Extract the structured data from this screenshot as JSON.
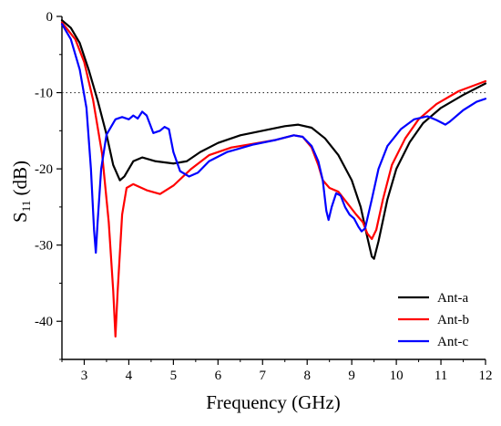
{
  "chart_data": {
    "type": "line",
    "title": "",
    "xlabel": "Frequency (GHz)",
    "ylabel_main": "S",
    "ylabel_sub": "11",
    "ylabel_unit": " (dB)",
    "xlim": [
      2.5,
      12
    ],
    "ylim": [
      -45,
      0
    ],
    "xticks": [
      3,
      4,
      5,
      6,
      7,
      8,
      9,
      10,
      11,
      12
    ],
    "yticks": [
      0,
      -10,
      -20,
      -30,
      -40
    ],
    "reference_line": {
      "y": -10,
      "style": "dotted",
      "color": "#333333"
    },
    "legend_position": "bottom-right",
    "grid": false,
    "series": [
      {
        "name": "Ant-a",
        "color": "#000000",
        "points": [
          [
            2.5,
            -0.5
          ],
          [
            2.7,
            -1.5
          ],
          [
            2.9,
            -3.5
          ],
          [
            3.1,
            -7
          ],
          [
            3.3,
            -11
          ],
          [
            3.5,
            -15.5
          ],
          [
            3.65,
            -19.5
          ],
          [
            3.8,
            -21.5
          ],
          [
            3.9,
            -21
          ],
          [
            4.1,
            -19
          ],
          [
            4.3,
            -18.5
          ],
          [
            4.6,
            -19
          ],
          [
            5.0,
            -19.3
          ],
          [
            5.3,
            -19
          ],
          [
            5.6,
            -17.8
          ],
          [
            6.0,
            -16.6
          ],
          [
            6.5,
            -15.6
          ],
          [
            7.0,
            -15
          ],
          [
            7.5,
            -14.4
          ],
          [
            7.8,
            -14.2
          ],
          [
            8.1,
            -14.6
          ],
          [
            8.4,
            -16
          ],
          [
            8.7,
            -18.2
          ],
          [
            9.0,
            -21.5
          ],
          [
            9.2,
            -25
          ],
          [
            9.35,
            -29
          ],
          [
            9.45,
            -31.5
          ],
          [
            9.5,
            -31.8
          ],
          [
            9.6,
            -29.5
          ],
          [
            9.8,
            -24
          ],
          [
            10.0,
            -20
          ],
          [
            10.3,
            -16.5
          ],
          [
            10.6,
            -14
          ],
          [
            11.0,
            -12
          ],
          [
            11.5,
            -10.3
          ],
          [
            12.0,
            -8.8
          ]
        ]
      },
      {
        "name": "Ant-b",
        "color": "#ff0000",
        "points": [
          [
            2.5,
            -0.8
          ],
          [
            2.8,
            -3
          ],
          [
            3.0,
            -6
          ],
          [
            3.2,
            -11
          ],
          [
            3.4,
            -18
          ],
          [
            3.55,
            -27
          ],
          [
            3.65,
            -36
          ],
          [
            3.7,
            -42
          ],
          [
            3.75,
            -36
          ],
          [
            3.85,
            -26
          ],
          [
            3.95,
            -22.5
          ],
          [
            4.1,
            -22
          ],
          [
            4.4,
            -22.8
          ],
          [
            4.7,
            -23.3
          ],
          [
            5.0,
            -22.2
          ],
          [
            5.4,
            -20
          ],
          [
            5.8,
            -18.2
          ],
          [
            6.3,
            -17.2
          ],
          [
            6.8,
            -16.7
          ],
          [
            7.3,
            -16.2
          ],
          [
            7.7,
            -15.6
          ],
          [
            7.9,
            -15.8
          ],
          [
            8.1,
            -17.2
          ],
          [
            8.25,
            -19.5
          ],
          [
            8.35,
            -21.5
          ],
          [
            8.5,
            -22.5
          ],
          [
            8.7,
            -23
          ],
          [
            8.9,
            -24.5
          ],
          [
            9.1,
            -26
          ],
          [
            9.25,
            -27
          ],
          [
            9.35,
            -28.5
          ],
          [
            9.45,
            -29.2
          ],
          [
            9.55,
            -28
          ],
          [
            9.7,
            -24
          ],
          [
            9.9,
            -19.5
          ],
          [
            10.2,
            -16
          ],
          [
            10.5,
            -13.5
          ],
          [
            10.9,
            -11.5
          ],
          [
            11.4,
            -9.8
          ],
          [
            12.0,
            -8.5
          ]
        ]
      },
      {
        "name": "Ant-c",
        "color": "#0000ff",
        "points": [
          [
            2.5,
            -1
          ],
          [
            2.7,
            -3
          ],
          [
            2.9,
            -7
          ],
          [
            3.05,
            -12
          ],
          [
            3.15,
            -20
          ],
          [
            3.22,
            -28
          ],
          [
            3.26,
            -31
          ],
          [
            3.3,
            -27
          ],
          [
            3.38,
            -20
          ],
          [
            3.5,
            -15.5
          ],
          [
            3.7,
            -13.5
          ],
          [
            3.85,
            -13.2
          ],
          [
            4.0,
            -13.5
          ],
          [
            4.1,
            -13
          ],
          [
            4.2,
            -13.4
          ],
          [
            4.3,
            -12.5
          ],
          [
            4.4,
            -13
          ],
          [
            4.55,
            -15.3
          ],
          [
            4.7,
            -15
          ],
          [
            4.8,
            -14.5
          ],
          [
            4.9,
            -14.8
          ],
          [
            5.0,
            -17.8
          ],
          [
            5.15,
            -20.3
          ],
          [
            5.35,
            -21
          ],
          [
            5.55,
            -20.5
          ],
          [
            5.8,
            -19
          ],
          [
            6.2,
            -17.8
          ],
          [
            6.8,
            -16.8
          ],
          [
            7.3,
            -16.2
          ],
          [
            7.7,
            -15.6
          ],
          [
            7.9,
            -15.8
          ],
          [
            8.1,
            -17
          ],
          [
            8.25,
            -19
          ],
          [
            8.35,
            -21.5
          ],
          [
            8.43,
            -25.5
          ],
          [
            8.48,
            -26.7
          ],
          [
            8.55,
            -25
          ],
          [
            8.65,
            -23.2
          ],
          [
            8.75,
            -23.5
          ],
          [
            8.85,
            -25
          ],
          [
            8.95,
            -26
          ],
          [
            9.05,
            -26.5
          ],
          [
            9.15,
            -27.6
          ],
          [
            9.22,
            -28.2
          ],
          [
            9.3,
            -27.8
          ],
          [
            9.45,
            -24
          ],
          [
            9.6,
            -20
          ],
          [
            9.8,
            -17
          ],
          [
            10.1,
            -14.8
          ],
          [
            10.4,
            -13.5
          ],
          [
            10.7,
            -13.1
          ],
          [
            10.9,
            -13.6
          ],
          [
            11.1,
            -14.2
          ],
          [
            11.2,
            -13.8
          ],
          [
            11.5,
            -12.3
          ],
          [
            11.8,
            -11.2
          ],
          [
            12.0,
            -10.8
          ]
        ]
      }
    ]
  }
}
